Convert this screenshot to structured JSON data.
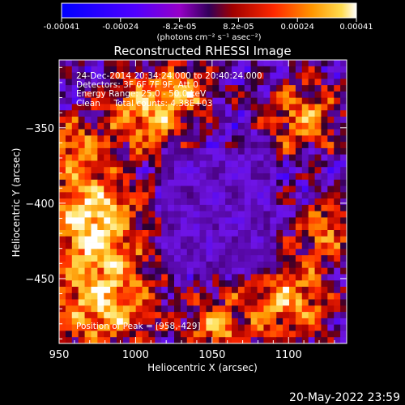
{
  "chart_data": {
    "type": "heatmap",
    "title": "Reconstructed RHESSI Image",
    "xlabel": "Heliocentric X (arcsec)",
    "ylabel": "Heliocentric Y (arcsec)",
    "xlim": [
      950,
      1138
    ],
    "ylim": [
      -493,
      -305
    ],
    "x_ticks": [
      "950",
      "1000",
      "1050",
      "1100"
    ],
    "y_ticks": [
      "-350",
      "-400",
      "-450"
    ],
    "colorbar": {
      "min": -0.00041,
      "max": 0.00041,
      "ticks": [
        "-0.00041",
        "-0.00024",
        "-8.2e-05",
        "8.2e-05",
        "0.00024",
        "0.00041"
      ],
      "unit_label": "(photons cm⁻² s⁻¹ asec⁻²)"
    },
    "annotations": [
      "24-Dec-2014 20:34:24.000 to 20:40:24.000",
      "Detectors: 3F 6F 7F 9F, Att 0",
      "Energy Range: 25.0 - 50.0 keV",
      "Clean     Total counts: 4.38E+03"
    ],
    "peak_label": "Position of Peak = [958,-429]",
    "grid": false,
    "colormap": "rhessi-temperature (blue-purple-red-orange-white)"
  },
  "footer": {
    "timestamp": "20-May-2022 23:59"
  }
}
